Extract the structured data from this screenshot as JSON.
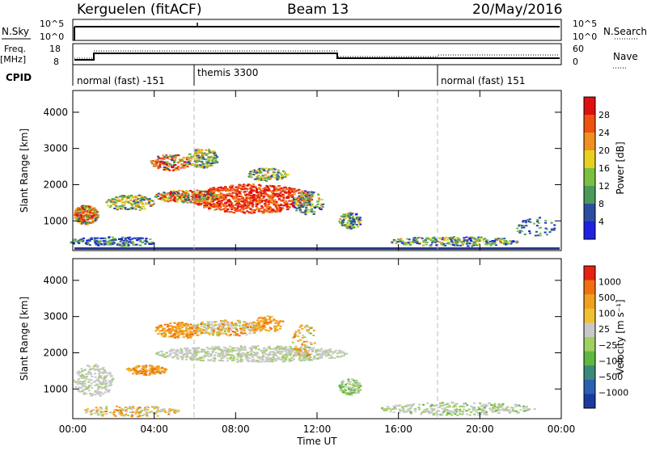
{
  "header": {
    "station": "Kerguelen (fitACF)",
    "beam": "Beam 13",
    "date": "20/May/2016"
  },
  "panels": {
    "nsky_label": "N.Sky",
    "nsearch_label": "N.Search",
    "nsky_ticks": [
      "10^5",
      "10^0"
    ],
    "nsearch_ticks": [
      "10^5",
      "10^0"
    ],
    "freq_label_1": "Freq.",
    "freq_label_2": "[MHz]",
    "freq_ticks": [
      "18",
      "8"
    ],
    "nave_label": "Nave",
    "nave_ticks": [
      "60",
      "0"
    ],
    "cpid_label": "CPID",
    "cpid_segments": [
      "normal (fast) -151",
      "themis 3300",
      "normal (fast) 151"
    ]
  },
  "chart_data": [
    {
      "type": "heatmap",
      "name": "power-panel",
      "ylabel": "Slant Range [km]",
      "yticks": [
        1000,
        2000,
        3000,
        4000
      ],
      "ylim": [
        180,
        4600
      ],
      "xticks": [
        "00:00",
        "04:00",
        "08:00",
        "12:00",
        "16:00",
        "20:00",
        "00:00"
      ],
      "colorbar_label": "Power [dB]",
      "colorbar_ticks": [
        "28",
        "24",
        "20",
        "16",
        "12",
        "8",
        "4"
      ],
      "colors": [
        "#2020e0",
        "#2a4fa0",
        "#4a9a5a",
        "#7ac040",
        "#e8d020",
        "#f09020",
        "#f05010",
        "#e01010"
      ]
    },
    {
      "type": "heatmap",
      "name": "velocity-panel",
      "ylabel": "Slant Range [km]",
      "yticks": [
        1000,
        2000,
        3000,
        4000
      ],
      "ylim": [
        180,
        4600
      ],
      "xticks": [
        "00:00",
        "04:00",
        "08:00",
        "12:00",
        "16:00",
        "20:00",
        "00:00"
      ],
      "xlabel": "Time UT",
      "colorbar_label": "Velocity [m s⁻¹]",
      "colorbar_ticks": [
        "1000",
        "500",
        "100",
        "25",
        "−25",
        "−100",
        "−500",
        "−1000"
      ],
      "colors": [
        "#1a3aa0",
        "#2a60b0",
        "#3a8a7a",
        "#60b840",
        "#a0d060",
        "#c8c8c8",
        "#f0c030",
        "#f0a020",
        "#f07010",
        "#e82010"
      ]
    }
  ]
}
